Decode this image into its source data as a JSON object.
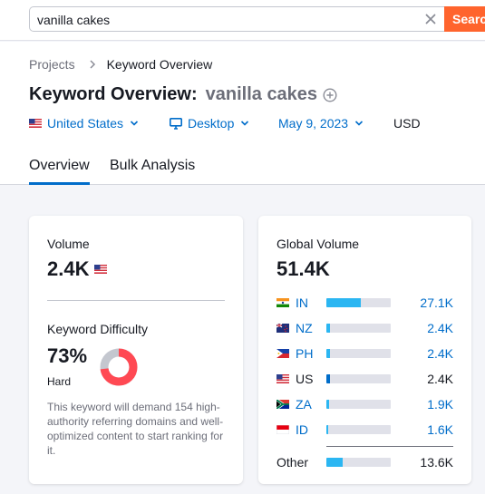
{
  "search": {
    "value": "vanilla cakes",
    "button_label": "Search"
  },
  "breadcrumb": {
    "parent": "Projects",
    "current": "Keyword Overview"
  },
  "header": {
    "title": "Keyword Overview:",
    "keyword": "vanilla cakes",
    "filters": {
      "country": "United States",
      "device": "Desktop",
      "date": "May 9, 2023",
      "currency": "USD"
    }
  },
  "tabs": [
    {
      "label": "Overview",
      "active": true
    },
    {
      "label": "Bulk Analysis",
      "active": false
    }
  ],
  "volume_card": {
    "volume_label": "Volume",
    "volume_value": "2.4K",
    "kd_label": "Keyword Difficulty",
    "kd_value": "73%",
    "kd_percent": 73,
    "kd_word": "Hard",
    "kd_description": "This keyword will demand 154 high-authority referring domains and well-optimized content to start ranking for it.",
    "colors": {
      "kd_fill": "#ff4953",
      "kd_track": "#c4c7cf"
    }
  },
  "global_card": {
    "label": "Global Volume",
    "value": "51.4K",
    "countries": [
      {
        "code": "IN",
        "value": "27.1K",
        "share": 0.53,
        "flag": "flag-india",
        "current": false
      },
      {
        "code": "NZ",
        "value": "2.4K",
        "share": 0.05,
        "flag": "flag-new-zealand",
        "current": false
      },
      {
        "code": "PH",
        "value": "2.4K",
        "share": 0.05,
        "flag": "flag-philippines",
        "current": false
      },
      {
        "code": "US",
        "value": "2.4K",
        "share": 0.05,
        "flag": "flag-united-states",
        "current": true
      },
      {
        "code": "ZA",
        "value": "1.9K",
        "share": 0.04,
        "flag": "flag-south-africa",
        "current": false
      },
      {
        "code": "ID",
        "value": "1.6K",
        "share": 0.03,
        "flag": "flag-indonesia",
        "current": false
      }
    ],
    "other": {
      "label": "Other",
      "value": "13.6K",
      "share": 0.26
    }
  },
  "colors": {
    "accent": "#006dca",
    "search_button": "#ff642d",
    "bar": "#2bb6f2",
    "bar_track": "#e0e1e9"
  }
}
